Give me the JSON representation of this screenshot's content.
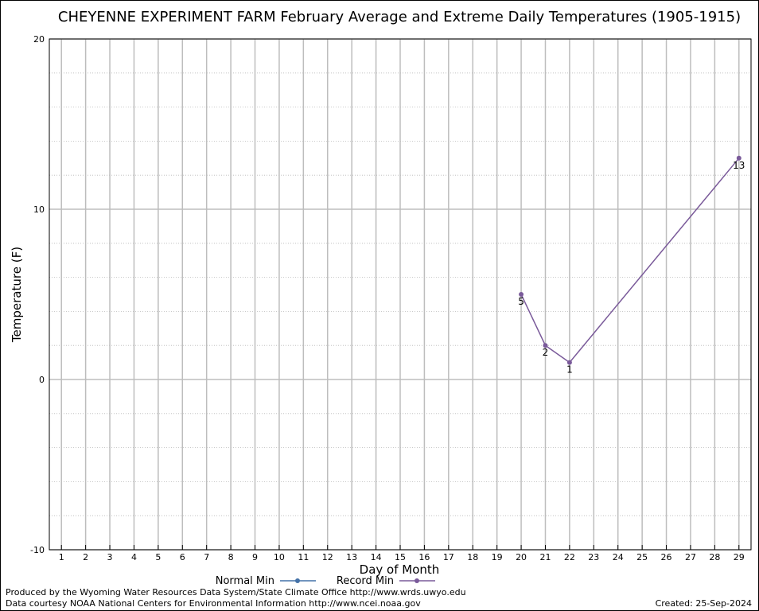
{
  "chart_data": {
    "type": "line",
    "title": "CHEYENNE EXPERIMENT FARM February Average and Extreme Daily Temperatures (1905-1915)",
    "xlabel": "Day of Month",
    "ylabel": "Temperature (F)",
    "xlim": [
      0.5,
      29.5
    ],
    "ylim": [
      -10,
      20
    ],
    "x_ticks": [
      1,
      2,
      3,
      4,
      5,
      6,
      7,
      8,
      9,
      10,
      11,
      12,
      13,
      14,
      15,
      16,
      17,
      18,
      19,
      20,
      21,
      22,
      23,
      24,
      25,
      26,
      27,
      28,
      29
    ],
    "y_ticks": [
      -10,
      0,
      10,
      20
    ],
    "grid": true,
    "legend_position": "bottom-center",
    "series": [
      {
        "name": "Normal Min",
        "color": "#4472a8",
        "x": [],
        "y": []
      },
      {
        "name": "Record Min",
        "color": "#7a5a9a",
        "x": [
          20,
          21,
          22,
          29
        ],
        "y": [
          5,
          2,
          1,
          13
        ],
        "labels": [
          "5",
          "2",
          "1",
          "13"
        ]
      }
    ]
  },
  "footer": {
    "line1": "Produced by the Wyoming Water Resources Data System/State Climate Office http://www.wrds.uwyo.edu",
    "line2": "Data courtesy NOAA National Centers for Environmental Information http://www.ncei.noaa.gov",
    "created": "Created:  25-Sep-2024"
  }
}
